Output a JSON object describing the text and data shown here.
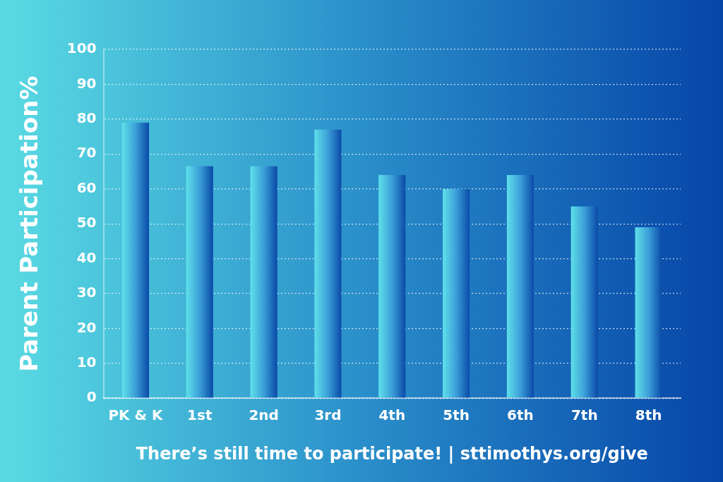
{
  "chart_data": {
    "type": "bar",
    "ylabel": "Parent Participation%",
    "xlabel": "There’s still time to participate! | sttimothys.org/give",
    "categories": [
      "PK & K",
      "1st",
      "2nd",
      "3rd",
      "4th",
      "5th",
      "6th",
      "7th",
      "8th"
    ],
    "values": [
      79,
      66.5,
      66.5,
      77,
      64,
      60,
      64,
      55,
      49
    ],
    "color": "#3b9fd8",
    "ylim": [
      0,
      100
    ],
    "yticks": [
      0,
      10,
      20,
      30,
      40,
      50,
      60,
      70,
      80,
      90,
      100
    ],
    "grid": "y",
    "legend": false
  }
}
